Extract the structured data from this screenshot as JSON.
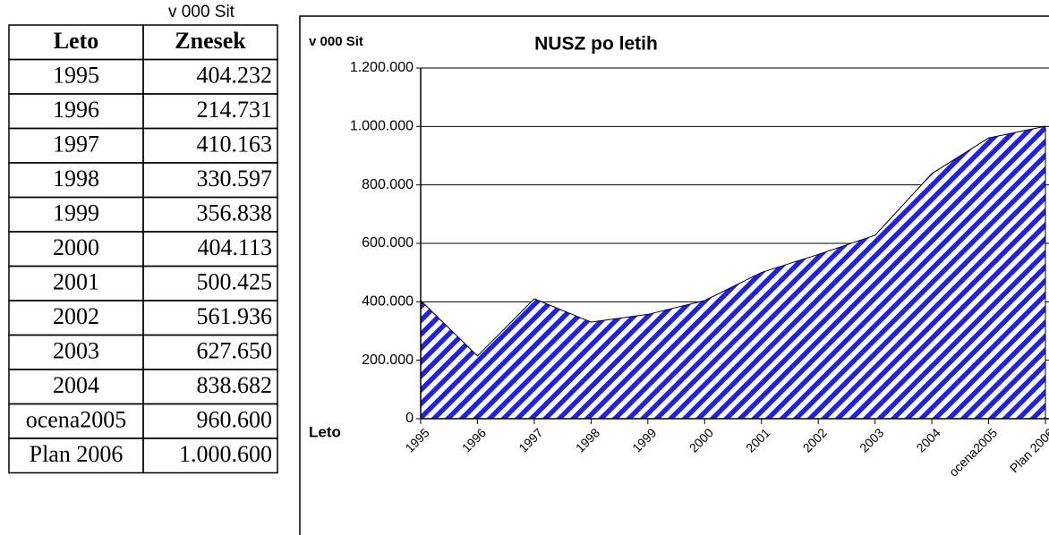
{
  "table": {
    "unit": "v 000 Sit",
    "header": [
      "Leto",
      "Znesek"
    ],
    "rows": [
      [
        "1995",
        "404.232"
      ],
      [
        "1996",
        "214.731"
      ],
      [
        "1997",
        "410.163"
      ],
      [
        "1998",
        "330.597"
      ],
      [
        "1999",
        "356.838"
      ],
      [
        "2000",
        "404.113"
      ],
      [
        "2001",
        "500.425"
      ],
      [
        "2002",
        "561.936"
      ],
      [
        "2003",
        "627.650"
      ],
      [
        "2004",
        "838.682"
      ],
      [
        "ocena2005",
        "960.600"
      ],
      [
        "Plan 2006",
        "1.000.600"
      ]
    ]
  },
  "chart_data": {
    "type": "area",
    "title": "NUSZ po letih",
    "y_label": "v 000 Sit",
    "x_label": "Leto",
    "categories": [
      "1995",
      "1996",
      "1997",
      "1998",
      "1999",
      "2000",
      "2001",
      "2002",
      "2003",
      "2004",
      "ocena2005",
      "Plan 2006"
    ],
    "values": [
      404232,
      214731,
      410163,
      330597,
      356838,
      404113,
      500425,
      561936,
      627650,
      838682,
      960600,
      1000600
    ],
    "color": "#2323d6",
    "hatch": true,
    "grid": true,
    "ylim": [
      0,
      1200000
    ],
    "yticks": [
      0,
      {
        "value": 200000,
        "label": "200.000"
      },
      {
        "value": 400000,
        "label": "400.000"
      },
      {
        "value": 600000,
        "label": "600.000"
      },
      {
        "value": 800000,
        "label": "800.000"
      },
      {
        "value": 1000000,
        "label": "1.000.000"
      },
      {
        "value": 1200000,
        "label": "1.200.000"
      }
    ]
  }
}
